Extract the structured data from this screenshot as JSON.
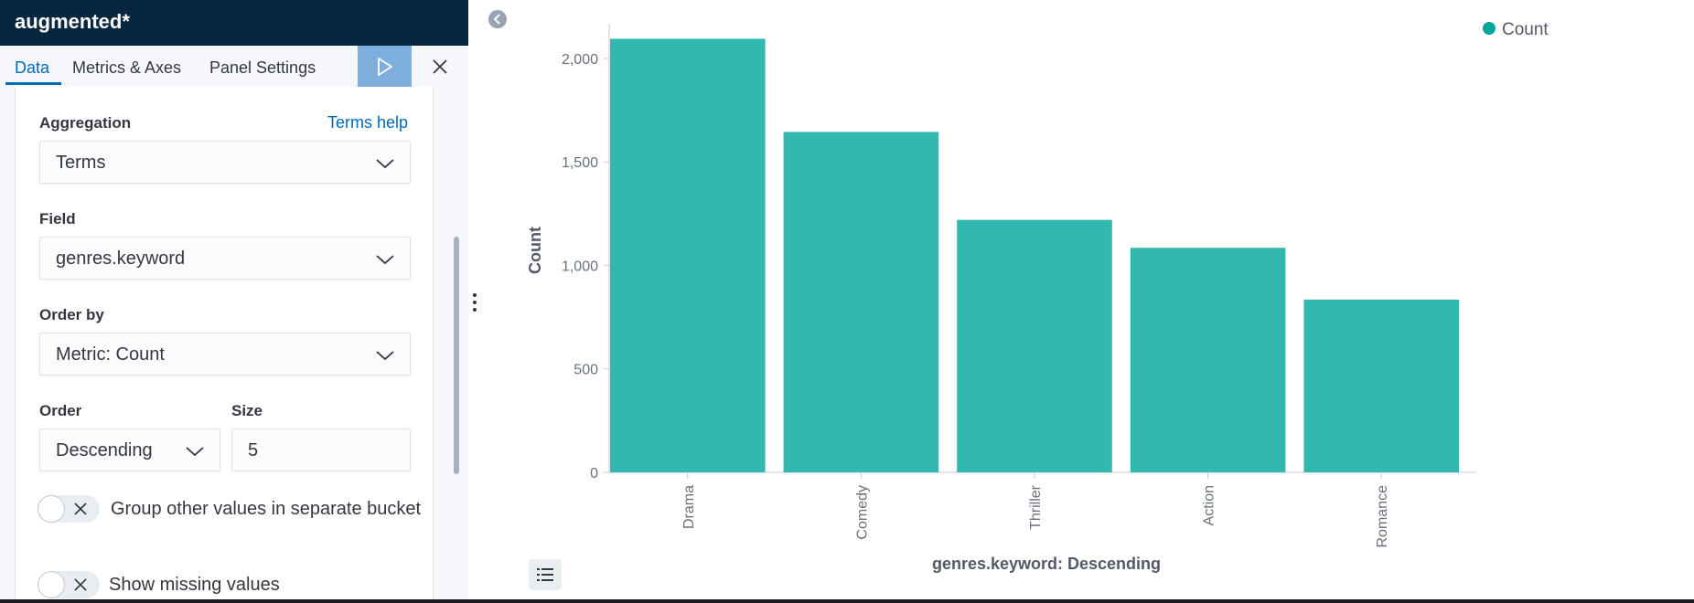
{
  "header": {
    "title": "augmented*"
  },
  "tabs": [
    {
      "label": "Data",
      "active": true
    },
    {
      "label": "Metrics & Axes",
      "active": false
    },
    {
      "label": "Panel Settings",
      "active": false
    }
  ],
  "form": {
    "aggregation": {
      "label": "Aggregation",
      "help": "Terms help",
      "value": "Terms"
    },
    "field": {
      "label": "Field",
      "value": "genres.keyword"
    },
    "order_by": {
      "label": "Order by",
      "value": "Metric: Count"
    },
    "order": {
      "label": "Order",
      "value": "Descending"
    },
    "size": {
      "label": "Size",
      "value": "5"
    },
    "group_other": {
      "label": "Group other values in separate bucket",
      "checked": false
    },
    "show_missing": {
      "label": "Show missing values",
      "checked": false
    }
  },
  "icons": {
    "run": "play-icon",
    "close": "close-icon",
    "collapse": "chevron-left-circle-icon",
    "drag": "vertical-dots-icon",
    "legend": "list-icon"
  },
  "colors": {
    "accent": "#006bb8",
    "bar": "#33b8b0",
    "title_bar": "#07263f",
    "run_button": "#7eaedc"
  },
  "chart_data": {
    "type": "bar",
    "categories": [
      "Drama",
      "Comedy",
      "Thriller",
      "Action",
      "Romance"
    ],
    "series": [
      {
        "name": "Count",
        "values": [
          2095,
          1645,
          1220,
          1085,
          835
        ]
      }
    ],
    "xlabel": "genres.keyword: Descending",
    "ylabel": "Count",
    "yticks": [
      0,
      500,
      1000,
      1500,
      2000
    ],
    "ytick_labels": [
      "0",
      "500",
      "1,000",
      "1,500",
      "2,000"
    ],
    "ylim": [
      0,
      2150
    ],
    "legend": {
      "entries": [
        "Count"
      ],
      "position": "top-right"
    },
    "grid": false
  }
}
